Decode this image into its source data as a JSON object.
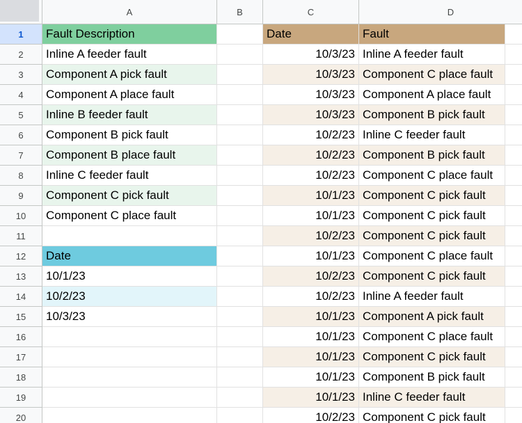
{
  "columns": [
    "A",
    "B",
    "C",
    "D"
  ],
  "rows": [
    "1",
    "2",
    "3",
    "4",
    "5",
    "6",
    "7",
    "8",
    "9",
    "10",
    "11",
    "12",
    "13",
    "14",
    "15",
    "16",
    "17",
    "18",
    "19",
    "20"
  ],
  "selected_row": 0,
  "colors": {
    "fault_header": "#7fcf9e",
    "fault_band": "#e8f5ec",
    "date_header": "#6ecbdf",
    "date_band": "#e2f5fa",
    "table_header": "#c8a77e",
    "table_band": "#f6efe6"
  },
  "column_a": [
    "Fault Description",
    "Inline A feeder fault",
    "Component A pick fault",
    "Component A place fault",
    "Inline B feeder fault",
    "Component B pick fault",
    "Component B place fault",
    "Inline C feeder fault",
    "Component C pick fault",
    "Component C place fault",
    "",
    "Date",
    "10/1/23",
    "10/2/23",
    "10/3/23",
    "",
    "",
    "",
    "",
    ""
  ],
  "table": {
    "headers": [
      "Date",
      "Fault"
    ],
    "rows": [
      [
        "10/3/23",
        "Inline A feeder fault"
      ],
      [
        "10/3/23",
        "Component C place fault"
      ],
      [
        "10/3/23",
        "Component A place fault"
      ],
      [
        "10/3/23",
        "Component B pick fault"
      ],
      [
        "10/2/23",
        "Inline C feeder fault"
      ],
      [
        "10/2/23",
        "Component B pick fault"
      ],
      [
        "10/2/23",
        "Component C place fault"
      ],
      [
        "10/1/23",
        "Component C pick fault"
      ],
      [
        "10/1/23",
        "Component C pick fault"
      ],
      [
        "10/2/23",
        "Component C pick fault"
      ],
      [
        "10/1/23",
        "Component C place fault"
      ],
      [
        "10/2/23",
        "Component C pick fault"
      ],
      [
        "10/2/23",
        "Inline A feeder fault"
      ],
      [
        "10/1/23",
        "Component A pick fault"
      ],
      [
        "10/1/23",
        "Component C place fault"
      ],
      [
        "10/1/23",
        "Component C pick fault"
      ],
      [
        "10/1/23",
        "Component B pick fault"
      ],
      [
        "10/1/23",
        "Inline C feeder fault"
      ],
      [
        "10/2/23",
        "Component C pick fault"
      ]
    ]
  }
}
